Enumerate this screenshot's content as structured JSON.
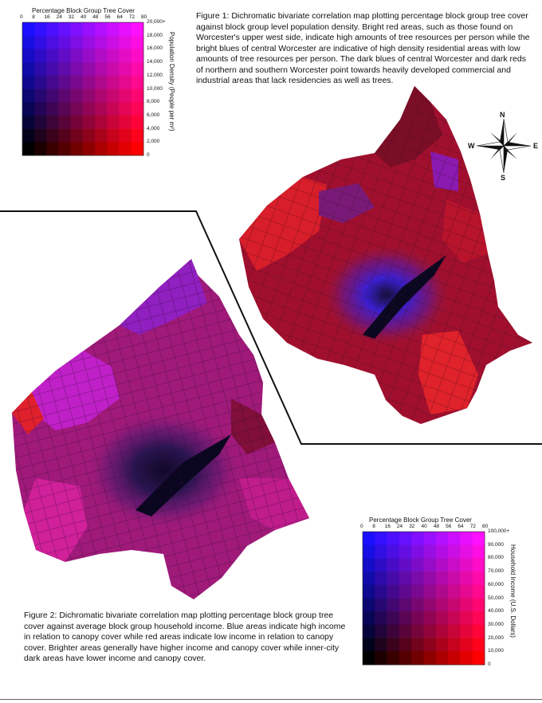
{
  "legend_density": {
    "title": "Percentage Block Group Tree Cover",
    "x_ticks": [
      "0",
      "8",
      "16",
      "24",
      "32",
      "40",
      "48",
      "56",
      "64",
      "72",
      "80"
    ],
    "y_ticks": [
      "20,000+",
      "18,000",
      "16,000",
      "14,000",
      "12,000",
      "10,000",
      "8,000",
      "6,000",
      "4,000",
      "2,000",
      "0"
    ],
    "y_label": "Population Density (People per m²)",
    "colors": {
      "top_left": "#1a10ff",
      "top_right": "#ff10ff",
      "bottom_left": "#000000",
      "bottom_right": "#ff0000"
    }
  },
  "legend_income": {
    "title": "Percentage Block Group Tree Cover",
    "x_ticks": [
      "0",
      "8",
      "16",
      "24",
      "32",
      "40",
      "48",
      "56",
      "64",
      "72",
      "80"
    ],
    "y_ticks": [
      "100,000+",
      "90,000",
      "80,000",
      "70,000",
      "60,000",
      "50,000",
      "40,000",
      "30,000",
      "20,000",
      "10,000",
      "0"
    ],
    "y_label": "Household Income (U.S. Dollars)",
    "colors": {
      "top_left": "#1a10ff",
      "top_right": "#ff10ff",
      "bottom_left": "#000000",
      "bottom_right": "#ff0000"
    }
  },
  "figure1_caption": "Figure 1:  Dichromatic bivariate correlation map plotting percentage block group tree cover against block group level population density.  Bright red areas, such as those found on Worcester's upper west side, indicate high amounts of tree resources per person while the bright blues of central Worcester are indicative of high density residential areas with low amounts of tree resources per person.  The dark blues of central Worcester and dark reds of northern and southern Worcester point towards heavily developed commercial and industrial areas that lack residencies as well as trees.",
  "figure2_caption": "Figure 2:  Dichromatic bivariate correlation map plotting percentage block group tree cover against average block group household income.  Blue areas indicate high income in relation to canopy cover while red areas indicate low income in relation to canopy cover.  Brighter areas generally have higher income and canopy cover while inner-city dark areas have lower income and canopy cover.",
  "compass": {
    "n": "N",
    "s": "S",
    "e": "E",
    "w": "W"
  }
}
